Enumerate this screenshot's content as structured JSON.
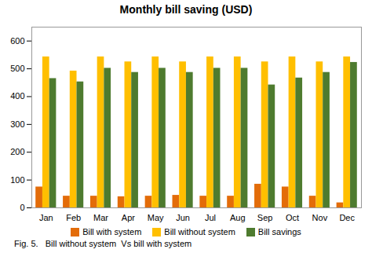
{
  "chart_data": {
    "type": "bar",
    "title": "Monthly bill saving (USD)",
    "caption": "Fig. 5.   Bill without system  Vs bill with system",
    "categories": [
      "Jan",
      "Feb",
      "Mar",
      "Apr",
      "May",
      "Jun",
      "Jul",
      "Aug",
      "Sep",
      "Oct",
      "Nov",
      "Dec"
    ],
    "series": [
      {
        "name": "Bill with system",
        "color": "#E36C09",
        "values": [
          75,
          42,
          42,
          40,
          42,
          45,
          42,
          42,
          85,
          75,
          42,
          18
        ]
      },
      {
        "name": "Bill without system",
        "color": "#FFBF00",
        "values": [
          543,
          492,
          543,
          525,
          543,
          525,
          543,
          543,
          525,
          543,
          525,
          543
        ]
      },
      {
        "name": "Bill savings",
        "color": "#4E7B2F",
        "values": [
          465,
          453,
          502,
          487,
          502,
          487,
          502,
          502,
          442,
          467,
          487,
          523
        ]
      }
    ],
    "ylim": [
      0,
      650
    ],
    "yticks": [
      0,
      100,
      200,
      300,
      400,
      500,
      600
    ],
    "grid": false,
    "legend": "bottom"
  }
}
